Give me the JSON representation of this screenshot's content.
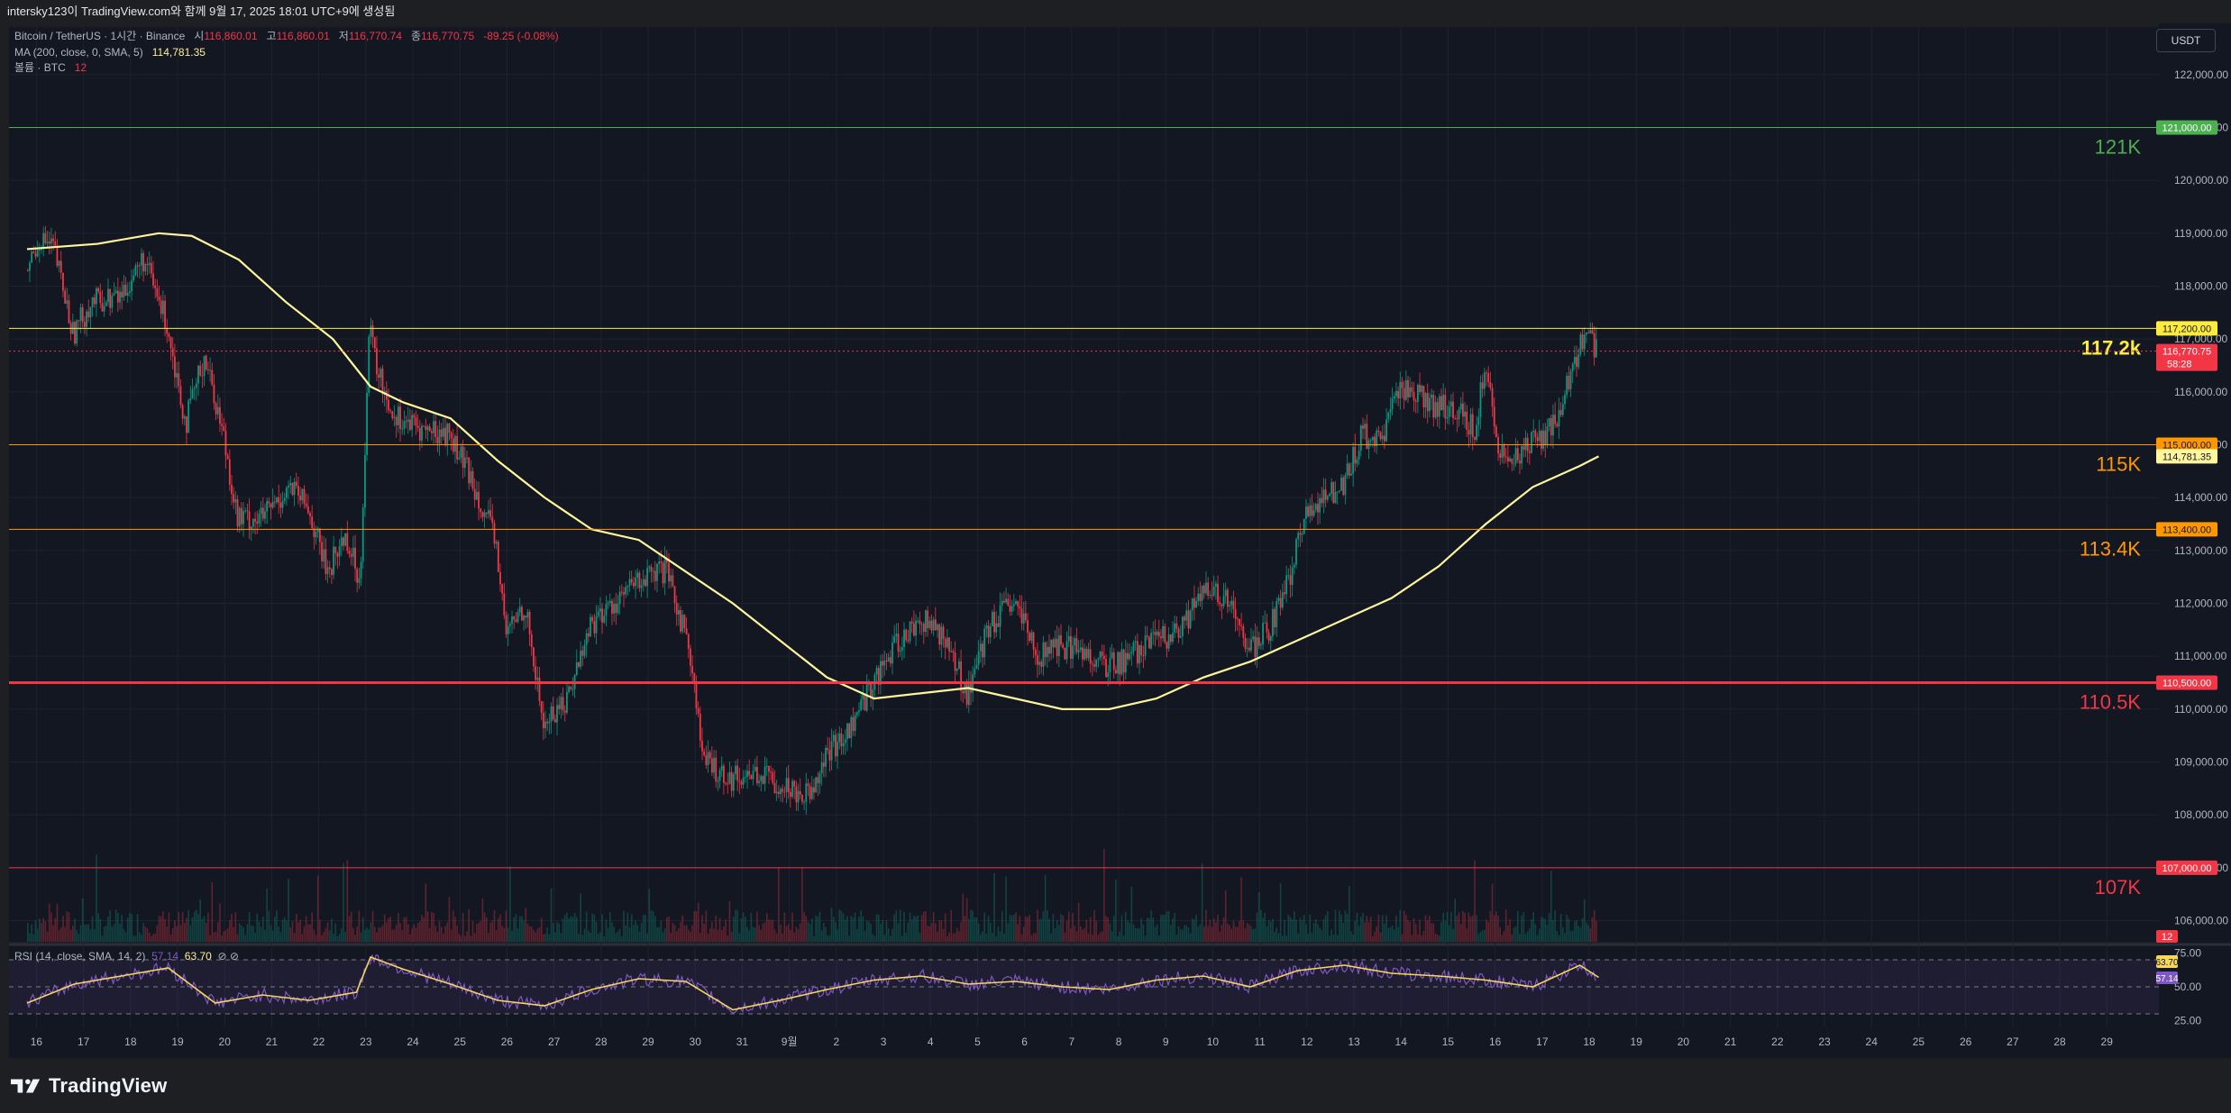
{
  "header": {
    "attribution": "intersky123이 TradingView.com와 함께 9월 17, 2025 18:01 UTC+9에 생성됨"
  },
  "legend": {
    "symbol": "Bitcoin / TetherUS · 1시간 · Binance",
    "open_label": "시",
    "open": "116,860.01",
    "high_label": "고",
    "high": "116,860.01",
    "low_label": "저",
    "low": "116,770.74",
    "close_label": "종",
    "close": "116,770.75",
    "change": "-89.25 (-0.08%)",
    "ma_label": "MA (200, close, 0, SMA, 5)",
    "ma_value": "114,781.35",
    "volume_label": "볼륨 · BTC",
    "volume_value": "12",
    "rsi_label": "RSI (14, close, SMA, 14, 2)",
    "rsi_value": "57.14",
    "rsi_ma_value": "63.70"
  },
  "toolbar": {
    "currency_button": "USDT"
  },
  "footer": {
    "logo_text": "TradingView"
  },
  "colors": {
    "background": "#131722",
    "grid": "#1e2230",
    "up_candle": "#089981",
    "down_candle": "#f23645",
    "ma_line": "#fff59d",
    "rsi_line": "#7e57c2",
    "rsi_ma_line": "#f7d65c"
  },
  "chart_data": {
    "type": "candlestick",
    "symbol": "BTCUSDT",
    "timeframe": "1h",
    "price_ylim": [
      105600,
      122900
    ],
    "price_ticks": [
      "122,000.00",
      "121,000.00",
      "120,000.00",
      "119,000.00",
      "118,000.00",
      "117,000.00",
      "116,000.00",
      "115,000.00",
      "114,000.00",
      "113,000.00",
      "112,000.00",
      "111,000.00",
      "110,000.00",
      "109,000.00",
      "108,000.00",
      "107,000.00",
      "106,000.00"
    ],
    "x_labels": [
      "16",
      "17",
      "18",
      "19",
      "20",
      "21",
      "22",
      "23",
      "24",
      "25",
      "26",
      "27",
      "28",
      "29",
      "30",
      "31",
      "9월",
      "2",
      "3",
      "4",
      "5",
      "6",
      "7",
      "8",
      "9",
      "10",
      "11",
      "12",
      "13",
      "14",
      "15",
      "16",
      "17",
      "18",
      "19",
      "20",
      "21",
      "22",
      "23",
      "24",
      "25",
      "26",
      "27",
      "28",
      "29"
    ],
    "x_data_days": 34,
    "x_total_days": 46,
    "price_path": [
      [
        0,
        118300
      ],
      [
        0.3,
        118900
      ],
      [
        0.6,
        118700
      ],
      [
        1.0,
        117100
      ],
      [
        1.4,
        117700
      ],
      [
        2.0,
        117800
      ],
      [
        2.5,
        118500
      ],
      [
        3.0,
        117300
      ],
      [
        3.4,
        115400
      ],
      [
        3.8,
        116700
      ],
      [
        4.2,
        115200
      ],
      [
        4.5,
        113600
      ],
      [
        5.0,
        113600
      ],
      [
        5.6,
        114200
      ],
      [
        6.0,
        113800
      ],
      [
        6.4,
        112600
      ],
      [
        6.8,
        113300
      ],
      [
        7.1,
        112400
      ],
      [
        7.3,
        117200
      ],
      [
        7.5,
        116300
      ],
      [
        7.8,
        115600
      ],
      [
        8.3,
        115300
      ],
      [
        9.0,
        115200
      ],
      [
        9.6,
        114100
      ],
      [
        10.0,
        113100
      ],
      [
        10.2,
        111400
      ],
      [
        10.6,
        112000
      ],
      [
        11.0,
        109700
      ],
      [
        11.5,
        110200
      ],
      [
        12.0,
        111600
      ],
      [
        12.5,
        112000
      ],
      [
        13.0,
        112400
      ],
      [
        13.6,
        112600
      ],
      [
        14.1,
        111200
      ],
      [
        14.4,
        109000
      ],
      [
        15.0,
        108700
      ],
      [
        15.5,
        108800
      ],
      [
        16.0,
        108600
      ],
      [
        16.6,
        108400
      ],
      [
        17.0,
        109100
      ],
      [
        17.5,
        109600
      ],
      [
        18.0,
        110500
      ],
      [
        18.5,
        111200
      ],
      [
        19.0,
        111700
      ],
      [
        19.5,
        111400
      ],
      [
        20.0,
        110300
      ],
      [
        20.5,
        111600
      ],
      [
        21.0,
        112000
      ],
      [
        21.5,
        111000
      ],
      [
        22.0,
        111200
      ],
      [
        22.5,
        111100
      ],
      [
        23.0,
        110800
      ],
      [
        23.5,
        111000
      ],
      [
        24.0,
        111300
      ],
      [
        24.5,
        111400
      ],
      [
        25.0,
        112200
      ],
      [
        25.5,
        112100
      ],
      [
        26.0,
        111100
      ],
      [
        26.4,
        111500
      ],
      [
        26.8,
        112300
      ],
      [
        27.2,
        113700
      ],
      [
        27.6,
        114000
      ],
      [
        28.0,
        114300
      ],
      [
        28.4,
        115200
      ],
      [
        28.8,
        115000
      ],
      [
        29.2,
        116100
      ],
      [
        29.6,
        116000
      ],
      [
        30.0,
        115700
      ],
      [
        30.4,
        115700
      ],
      [
        30.8,
        115300
      ],
      [
        31.0,
        116500
      ],
      [
        31.3,
        115000
      ],
      [
        31.6,
        114700
      ],
      [
        32.0,
        115000
      ],
      [
        32.3,
        115200
      ],
      [
        32.6,
        115600
      ],
      [
        32.9,
        116600
      ],
      [
        33.2,
        117100
      ],
      [
        33.4,
        116800
      ]
    ],
    "ma200_path": [
      [
        0,
        118700
      ],
      [
        1.5,
        118800
      ],
      [
        2.8,
        119000
      ],
      [
        3.5,
        118950
      ],
      [
        4.5,
        118500
      ],
      [
        5.5,
        117700
      ],
      [
        6.5,
        117000
      ],
      [
        7.3,
        116100
      ],
      [
        8.0,
        115800
      ],
      [
        9.0,
        115500
      ],
      [
        10.0,
        114700
      ],
      [
        11.0,
        114000
      ],
      [
        12.0,
        113400
      ],
      [
        13.0,
        113200
      ],
      [
        14.0,
        112600
      ],
      [
        15.0,
        112000
      ],
      [
        16.0,
        111300
      ],
      [
        17.0,
        110600
      ],
      [
        18.0,
        110200
      ],
      [
        19.0,
        110300
      ],
      [
        20.0,
        110400
      ],
      [
        21.0,
        110200
      ],
      [
        22.0,
        110000
      ],
      [
        23.0,
        110000
      ],
      [
        24.0,
        110200
      ],
      [
        25.0,
        110600
      ],
      [
        26.0,
        110900
      ],
      [
        27.0,
        111300
      ],
      [
        28.0,
        111700
      ],
      [
        29.0,
        112100
      ],
      [
        30.0,
        112700
      ],
      [
        31.0,
        113500
      ],
      [
        32.0,
        114200
      ],
      [
        33.0,
        114600
      ],
      [
        33.4,
        114781
      ]
    ],
    "rsi_path": [
      [
        0,
        38
      ],
      [
        1,
        52
      ],
      [
        2,
        58
      ],
      [
        3,
        64
      ],
      [
        4,
        38
      ],
      [
        5,
        44
      ],
      [
        6,
        40
      ],
      [
        7,
        46
      ],
      [
        7.3,
        72
      ],
      [
        8,
        63
      ],
      [
        9,
        52
      ],
      [
        10,
        40
      ],
      [
        11,
        36
      ],
      [
        12,
        48
      ],
      [
        13,
        56
      ],
      [
        14,
        54
      ],
      [
        15,
        33
      ],
      [
        16,
        40
      ],
      [
        17,
        48
      ],
      [
        18,
        55
      ],
      [
        19,
        58
      ],
      [
        20,
        52
      ],
      [
        21,
        54
      ],
      [
        22,
        50
      ],
      [
        23,
        48
      ],
      [
        24,
        55
      ],
      [
        25,
        58
      ],
      [
        26,
        50
      ],
      [
        27,
        62
      ],
      [
        28,
        66
      ],
      [
        29,
        60
      ],
      [
        30,
        58
      ],
      [
        31,
        55
      ],
      [
        32,
        50
      ],
      [
        33,
        66
      ],
      [
        33.4,
        57
      ]
    ],
    "rsi_ylim": [
      20,
      80
    ],
    "rsi_ticks": [
      "75.00",
      "50.00",
      "25.00"
    ],
    "horizontal_levels": [
      {
        "price": 121000,
        "axis_label": "121,000.00",
        "text": "121K",
        "color": "#4caf50",
        "width": 1
      },
      {
        "price": 117200,
        "axis_label": "117,200.00",
        "text": "117.2k",
        "color": "#ffeb3b",
        "width": 1
      },
      {
        "price": 115000,
        "axis_label": "115,000.00",
        "text": "115K",
        "color": "#ff9800",
        "width": 1
      },
      {
        "price": 113400,
        "axis_label": "113,400.00",
        "text": "113.4K",
        "color": "#ff9800",
        "width": 1
      },
      {
        "price": 110500,
        "axis_label": "110,500.00",
        "text": "110.5K",
        "color": "#f23645",
        "width": 3
      },
      {
        "price": 107000,
        "axis_label": "107,000.00",
        "text": "107K",
        "color": "#f23645",
        "width": 1
      }
    ],
    "current_price_label": "116,770.75",
    "countdown_label": "58:28",
    "ma_axis_label": "114,781.35",
    "volume_axis_label": "12",
    "rsi_axis_labels": [
      "63.70",
      "57.14"
    ]
  }
}
